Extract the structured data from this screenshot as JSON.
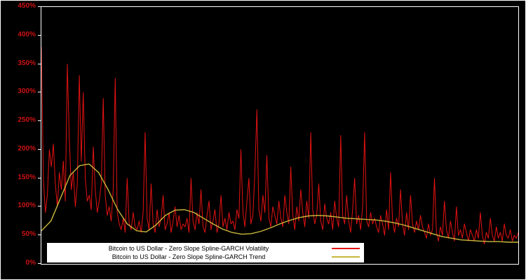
{
  "chart_data": {
    "type": "line",
    "title": "",
    "xlabel": "",
    "ylabel": "",
    "ylim": [
      0,
      450
    ],
    "grid": false,
    "background_color": "#000000",
    "axis_color": "#ffffff",
    "tick_label_color": "#cc1111",
    "legend_position": "bottom-inside",
    "y_tick_labels": [
      "450%",
      "400%",
      "350%",
      "300%",
      "250%",
      "200%",
      "150%",
      "100%",
      "50%",
      "0%"
    ],
    "series": [
      {
        "name": "Bitcoin to US Dollar - Zero Slope Spline-GARCH Volatility",
        "color": "#e31212",
        "unit": "%",
        "values": [
          380,
          150,
          90,
          120,
          200,
          170,
          210,
          140,
          100,
          160,
          130,
          180,
          110,
          350,
          220,
          130,
          160,
          100,
          140,
          330,
          180,
          300,
          150,
          110,
          120,
          95,
          205,
          130,
          90,
          110,
          140,
          290,
          120,
          85,
          100,
          75,
          130,
          325,
          90,
          70,
          60,
          80,
          55,
          150,
          70,
          60,
          90,
          65,
          60,
          75,
          55,
          90,
          230,
          80,
          60,
          140,
          70,
          55,
          95,
          65,
          80,
          120,
          60,
          70,
          90,
          55,
          75,
          100,
          65,
          85,
          60,
          70,
          65,
          80,
          55,
          150,
          75,
          60,
          90,
          70,
          130,
          65,
          55,
          85,
          110,
          60,
          75,
          95,
          55,
          70,
          120,
          65,
          80,
          60,
          90,
          70,
          75,
          60,
          95,
          80,
          200,
          90,
          65,
          110,
          150,
          70,
          85,
          160,
          270,
          95,
          75,
          120,
          90,
          190,
          80,
          65,
          100,
          85,
          70,
          110,
          80,
          65,
          120,
          90,
          70,
          170,
          85,
          60,
          100,
          75,
          130,
          90,
          65,
          110,
          80,
          230,
          95,
          70,
          85,
          140,
          75,
          60,
          105,
          80,
          70,
          90,
          60,
          110,
          80,
          65,
          225,
          85,
          70,
          120,
          75,
          55,
          95,
          150,
          70,
          85,
          60,
          100,
          230,
          75,
          65,
          90,
          70,
          80,
          65,
          55,
          85,
          70,
          50,
          95,
          60,
          160,
          75,
          55,
          80,
          65,
          130,
          70,
          50,
          90,
          60,
          120,
          70,
          55,
          75,
          60,
          85,
          65,
          55,
          45,
          70,
          50,
          60,
          150,
          55,
          40,
          65,
          50,
          110,
          60,
          45,
          75,
          55,
          40,
          100,
          50,
          60,
          45,
          70,
          55,
          40,
          60,
          50,
          40,
          60,
          45,
          90,
          50,
          35,
          55,
          45,
          80,
          50,
          40,
          65,
          45,
          55,
          40,
          70,
          50,
          45,
          60,
          40,
          50,
          45,
          55
        ]
      },
      {
        "name": "Bitcoin to US Dollar - Zero Slope Spline-GARCH Trend",
        "color": "#c9b73b",
        "unit": "%",
        "values": [
          58,
          75,
          115,
          155,
          172,
          175,
          160,
          130,
          95,
          70,
          58,
          56,
          68,
          85,
          94,
          95,
          90,
          80,
          70,
          61,
          55,
          52,
          53,
          57,
          63,
          70,
          76,
          81,
          84,
          85,
          84,
          82,
          80,
          79,
          78,
          77,
          75,
          72,
          68,
          63,
          58,
          53,
          48,
          45,
          42,
          41,
          40,
          39,
          39,
          38,
          38
        ]
      }
    ]
  }
}
